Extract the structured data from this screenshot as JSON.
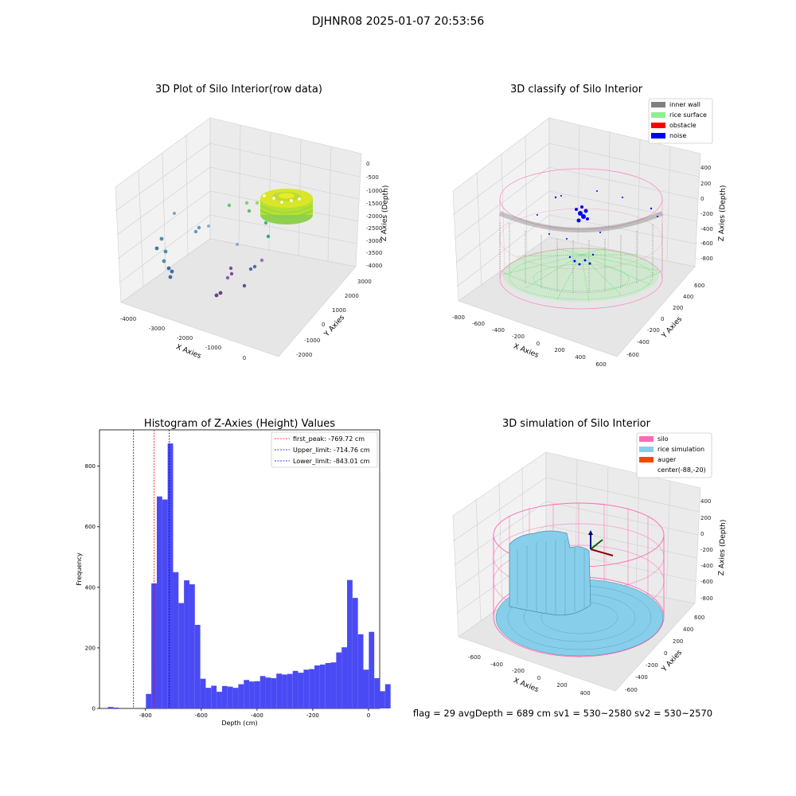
{
  "suptitle": "DJHNR08 2025-01-07 20:53:56",
  "footer": "flag = 29  avgDepth = 689 cm  sv1 = 530~2580  sv2 = 530~2570",
  "colors": {
    "histogram_bar": "#4a4af5",
    "first_peak_line": "#ff0000",
    "limit_line": "#0000cc",
    "inner_wall": "#808080",
    "rice_surface": "#90ee90",
    "obstacle": "#ff0000",
    "noise": "#0000ff",
    "silo": "#ff69b4",
    "rice_simulation": "#87ceeb",
    "auger": "#ff4500"
  },
  "chart_data": [
    {
      "type": "scatter",
      "title": "3D Plot of Silo Interior(row data)",
      "xlabel": "X Axies",
      "ylabel": "Y Axies",
      "zlabel": "Z Axies (Depth)",
      "x_ticks": [
        "-4000",
        "-3000",
        "-2000",
        "-1000",
        "0"
      ],
      "y_ticks": [
        "-2000",
        "-1000",
        "0",
        "1000",
        "2000",
        "3000"
      ],
      "z_ticks": [
        "0",
        "-500",
        "-1000",
        "-1500",
        "-2000",
        "-2500",
        "-3000",
        "-3500",
        "-4000"
      ],
      "xlim": [
        -4200,
        300
      ],
      "ylim": [
        -2500,
        3200
      ],
      "zlim": [
        -4200,
        0
      ],
      "points": [
        {
          "x": -3700,
          "y": 0,
          "z": -2300
        },
        {
          "x": -3500,
          "y": 200,
          "z": -2600
        },
        {
          "x": -3300,
          "y": 400,
          "z": -3000
        },
        {
          "x": -3100,
          "y": 600,
          "z": -3400
        },
        {
          "x": -2700,
          "y": 900,
          "z": -2400
        },
        {
          "x": -2200,
          "y": 2000,
          "z": -1900
        },
        {
          "x": -1900,
          "y": 2200,
          "z": -1500
        },
        {
          "x": -1400,
          "y": 2500,
          "z": -1300
        },
        {
          "x": -1200,
          "y": -800,
          "z": -3700
        },
        {
          "x": -900,
          "y": -400,
          "z": -3400
        },
        {
          "x": -700,
          "y": -1600,
          "z": -3900
        },
        {
          "x": -500,
          "y": 300,
          "z": -3000
        },
        {
          "x": -300,
          "y": 1800,
          "z": -2300
        },
        {
          "x": 100,
          "y": 2700,
          "z": -1200
        }
      ],
      "ring": {
        "cx": 0,
        "cy": 2600,
        "z": -800,
        "label_values": "rice surface ring"
      }
    },
    {
      "type": "scatter",
      "title": "3D classify of Silo Interior",
      "xlabel": "X Axies",
      "ylabel": "Y Axies",
      "zlabel": "Z Axies (Depth)",
      "x_ticks": [
        "-800",
        "-600",
        "-400",
        "-200",
        "0",
        "200",
        "400",
        "600"
      ],
      "y_ticks": [
        "-600",
        "-400",
        "-200",
        "0",
        "200",
        "400",
        "600"
      ],
      "z_ticks": [
        "400",
        "200",
        "0",
        "-200",
        "-400",
        "-600",
        "-800"
      ],
      "legend": [
        "inner wall",
        "rice surface",
        "obstacle",
        "noise"
      ],
      "cylinder": {
        "radius": 650,
        "z_top": 0,
        "z_bottom": -850
      }
    },
    {
      "type": "bar",
      "title": "Histogram of Z-Axies (Height) Values",
      "xlabel": "Depth (cm)",
      "ylabel": "Frequency",
      "x_ticks": [
        -800,
        -600,
        -400,
        -200,
        0
      ],
      "y_ticks": [
        0,
        200,
        400,
        600,
        800
      ],
      "xlim": [
        -965,
        40
      ],
      "ylim": [
        0,
        920
      ],
      "bin_start": -935,
      "bin_width": 19.5,
      "values": [
        5,
        3,
        0,
        0,
        0,
        0,
        0,
        48,
        413,
        700,
        690,
        875,
        450,
        348,
        423,
        410,
        276,
        98,
        68,
        75,
        55,
        74,
        72,
        68,
        80,
        94,
        89,
        90,
        107,
        102,
        100,
        115,
        112,
        114,
        124,
        118,
        128,
        130,
        142,
        145,
        150,
        152,
        185,
        202,
        424,
        365,
        245,
        128,
        253,
        100,
        57,
        80
      ],
      "vlines": [
        {
          "label": "first_peak: -769.72 cm",
          "x": -769.72,
          "color": "#ff0000"
        },
        {
          "label": "Upper_limit: -714.76 cm",
          "x": -714.76,
          "color": "#0000cc"
        },
        {
          "label": "Lower_limit: -843.01 cm",
          "x": -843.01,
          "color": "#0000cc"
        }
      ]
    },
    {
      "type": "area",
      "title": "3D simulation of Silo Interior",
      "xlabel": "X Axies",
      "ylabel": "Y Axies",
      "zlabel": "Z Axies (Depth)",
      "x_ticks": [
        "-600",
        "-400",
        "-200",
        "0",
        "200",
        "400"
      ],
      "y_ticks": [
        "-600",
        "-400",
        "-200",
        "0",
        "200",
        "400",
        "600"
      ],
      "z_ticks": [
        "400",
        "200",
        "0",
        "-200",
        "-400",
        "-600",
        "-800"
      ],
      "legend": [
        "silo",
        "rice simulation",
        "auger",
        "center(-88,-20)"
      ]
    }
  ]
}
